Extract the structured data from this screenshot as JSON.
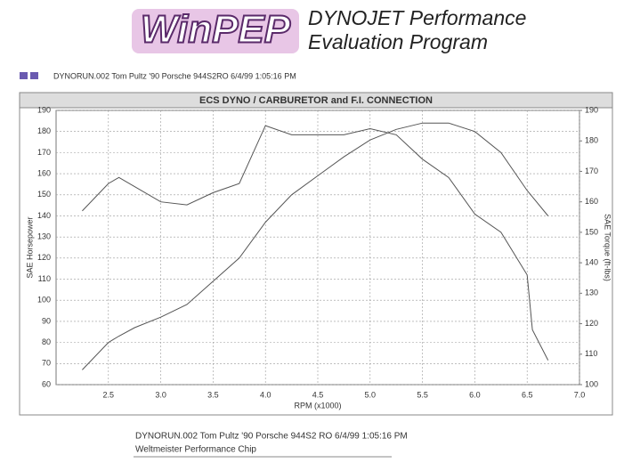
{
  "header": {
    "logo": "WinPEP",
    "tagline": [
      "DYNOJET Performance",
      "Evaluation Program"
    ],
    "run_info": "DYNORUN.002   Tom Pultz '90 Porsche 944S2RO  6/4/99 1:05:16 PM"
  },
  "chart_data": {
    "type": "line",
    "title": "ECS DYNO  / CARBURETOR  and F.I. CONNECTION",
    "x_label": "RPM (x1000)",
    "y_label": "SAE Horsepower",
    "y2_label": "SAE Torque (ft-lbs)",
    "x": [
      2.25,
      2.5,
      2.6,
      2.75,
      3.0,
      3.25,
      3.5,
      3.75,
      4.0,
      4.25,
      4.5,
      4.75,
      5.0,
      5.25,
      5.5,
      5.75,
      6.0,
      6.25,
      6.5,
      6.55,
      6.7
    ],
    "series": [
      {
        "color": "#555555",
        "values": [
          67,
          80,
          83,
          87,
          92,
          98,
          109,
          120,
          137,
          150,
          159,
          168,
          176,
          181,
          184,
          184,
          180,
          170,
          152,
          149,
          140
        ]
      },
      {
        "color": "#555555",
        "axis": "y2",
        "values": [
          157,
          166,
          168,
          165,
          160,
          159,
          163,
          166,
          185,
          182,
          182,
          182,
          184,
          182,
          174,
          168,
          156,
          150,
          136,
          118,
          108
        ]
      }
    ],
    "xlim": [
      2.0,
      7.0
    ],
    "xticks": [
      2.5,
      {
        "value": 3,
        "label": "3.0"
      },
      3.5,
      {
        "value": 4,
        "label": "4.0"
      },
      4.5,
      {
        "value": 5,
        "label": "5.0"
      },
      5.5,
      {
        "value": 6,
        "label": "6.0"
      },
      6.5,
      {
        "value": 7,
        "label": "7.0"
      }
    ],
    "ylim": [
      60,
      190
    ],
    "yticks": [
      60,
      70,
      80,
      90,
      100,
      110,
      120,
      130,
      140,
      150,
      160,
      170,
      180,
      190
    ],
    "y2lim": [
      100,
      190
    ],
    "y2ticks": [
      100,
      110,
      120,
      130,
      140,
      150,
      160,
      170,
      180,
      190
    ],
    "grid": true
  },
  "footer": {
    "run_info": "DYNORUN.002   Tom Pultz '90 Porsche 944S2    RO    6/4/99 1:05:16 PM",
    "note": "Weltmeister Performance Chip"
  }
}
